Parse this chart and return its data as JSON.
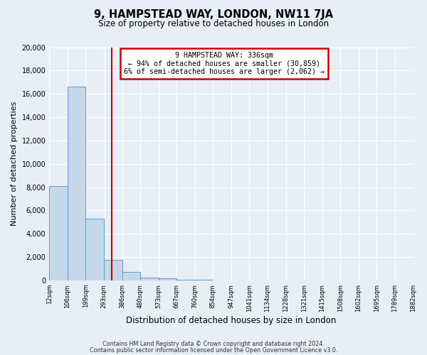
{
  "title": "9, HAMPSTEAD WAY, LONDON, NW11 7JA",
  "subtitle": "Size of property relative to detached houses in London",
  "xlabel": "Distribution of detached houses by size in London",
  "ylabel": "Number of detached properties",
  "bar_values": [
    8100,
    16600,
    5300,
    1750,
    700,
    270,
    160,
    80,
    60,
    0,
    0,
    0,
    0,
    0,
    0,
    0,
    0,
    0,
    0,
    0
  ],
  "bin_labels": [
    "12sqm",
    "106sqm",
    "199sqm",
    "293sqm",
    "386sqm",
    "480sqm",
    "573sqm",
    "667sqm",
    "760sqm",
    "854sqm",
    "947sqm",
    "1041sqm",
    "1134sqm",
    "1228sqm",
    "1321sqm",
    "1415sqm",
    "1508sqm",
    "1602sqm",
    "1695sqm",
    "1789sqm",
    "1882sqm"
  ],
  "bar_color": "#c5d8ea",
  "bar_edge_color": "#5b9bd5",
  "vline_x": 3.45,
  "vline_color": "#cc0000",
  "annotation_title": "9 HAMPSTEAD WAY: 336sqm",
  "annotation_line1": "← 94% of detached houses are smaller (30,859)",
  "annotation_line2": "6% of semi-detached houses are larger (2,062) →",
  "annotation_box_edge": "#cc0000",
  "ylim": [
    0,
    20000
  ],
  "yticks": [
    0,
    2000,
    4000,
    6000,
    8000,
    10000,
    12000,
    14000,
    16000,
    18000,
    20000
  ],
  "footer_line1": "Contains HM Land Registry data © Crown copyright and database right 2024.",
  "footer_line2": "Contains public sector information licensed under the Open Government Licence v3.0.",
  "bg_color": "#e8eef5",
  "plot_bg_color": "#e8eef5"
}
